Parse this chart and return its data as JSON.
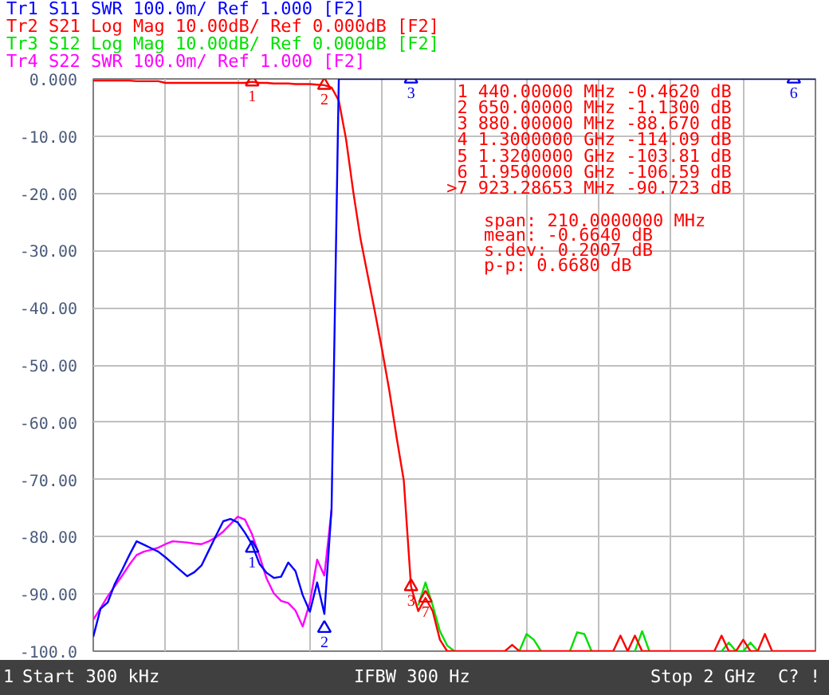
{
  "chart_data": {
    "type": "line",
    "categories": [
      null,
      null,
      null,
      null,
      null,
      null,
      null,
      null,
      null,
      null,
      null,
      null,
      null,
      null,
      null,
      null,
      null,
      null,
      null,
      null,
      null,
      null,
      null,
      null,
      null,
      null,
      null,
      null,
      null,
      null,
      null,
      null,
      null,
      null,
      null,
      null,
      null,
      null,
      null,
      null,
      null,
      null,
      null,
      null,
      null,
      null,
      null,
      null,
      null,
      null,
      null,
      null,
      null,
      null,
      null,
      null,
      null,
      null,
      null,
      null,
      null,
      null,
      null,
      null,
      null,
      null,
      null,
      null,
      null,
      null,
      null,
      null,
      null,
      null,
      null,
      null,
      null,
      null,
      null,
      null,
      null,
      null,
      null,
      null,
      null,
      null,
      null,
      null,
      null,
      null,
      null,
      null,
      null,
      null,
      null,
      null,
      null,
      null,
      null,
      null,
      null
    ],
    "ylim": [
      -100,
      0
    ],
    "yticks": [
      {
        "value": 0,
        "label": "0.000"
      },
      {
        "value": -10,
        "label": "-10.00"
      },
      {
        "value": -20,
        "label": "-20.00"
      },
      {
        "value": -30,
        "label": "-30.00"
      },
      {
        "value": -40,
        "label": "-40.00"
      },
      {
        "value": -50,
        "label": "-50.00"
      },
      {
        "value": -60,
        "label": "-60.00"
      },
      {
        "value": -70,
        "label": "-70.00"
      },
      {
        "value": -80,
        "label": "-80.00"
      },
      {
        "value": -90,
        "label": "-90.00"
      },
      {
        "value": -100,
        "label": "-100.0"
      }
    ],
    "tick_labels": "y",
    "grid": true,
    "line_style": "solid",
    "series": [
      {
        "name": "Tr1 S11 SWR 100.0m/ Ref 1.000 [F2]",
        "color": "#0000ff",
        "values": [
          -97.5,
          -92.6,
          -91.5,
          -88.2,
          -85.8,
          -83.2,
          -80.8,
          -81.4,
          -82,
          -82.6,
          -83.6,
          -84.7,
          -85.8,
          -86.9,
          -86.2,
          -85,
          -82.4,
          -79.8,
          -77.3,
          -76.9,
          -77.5,
          -79.3,
          -81.4,
          -84.7,
          -86.3,
          -87.2,
          -87,
          -84.5,
          -86,
          -90.2,
          -93.1,
          -88,
          -93.5,
          -75,
          0,
          0,
          0,
          0,
          0,
          0,
          0,
          0,
          0,
          0,
          0,
          0,
          0,
          0,
          0,
          0,
          0,
          0,
          0,
          0,
          0,
          0,
          0,
          0,
          0,
          0,
          0,
          0,
          0,
          0,
          0,
          0,
          0,
          0,
          0,
          0,
          0,
          0,
          0,
          0,
          0,
          0,
          0,
          0,
          0,
          0,
          0,
          0,
          0,
          0,
          0,
          0,
          0,
          0,
          0,
          0,
          0,
          0,
          0,
          0,
          0,
          0,
          0,
          0,
          0,
          0,
          0
        ]
      },
      {
        "name": "Tr2 S21 Log Mag 10.00dB/ Ref 0.000dB [F2]",
        "color": "#ff0000",
        "values": [
          -0.3,
          -0.3,
          -0.3,
          -0.3,
          -0.3,
          -0.3,
          -0.4,
          -0.4,
          -0.4,
          -0.4,
          -0.7,
          -0.7,
          -0.7,
          -0.7,
          -0.7,
          -0.7,
          -0.7,
          -0.7,
          -0.7,
          -0.7,
          -0.7,
          -0.7,
          -0.5,
          -0.7,
          -0.7,
          -0.8,
          -0.8,
          -0.8,
          -0.9,
          -0.9,
          -0.9,
          -1,
          -1.1,
          -1.5,
          -3.8,
          -10.5,
          -19.7,
          -27.9,
          -34.3,
          -40.7,
          -47.4,
          -54.5,
          -62.6,
          -70.2,
          -88.7,
          -93,
          -90.7,
          -93,
          -98,
          -100,
          -100,
          -100,
          -100,
          -100,
          -100,
          -100,
          -100,
          -100,
          -98.9,
          -100,
          -100,
          -100,
          -100,
          -100,
          -100,
          -100,
          -100,
          -100,
          -100,
          -100,
          -100,
          -100,
          -100,
          -97.3,
          -100,
          -97.3,
          -100,
          -100,
          -100,
          -100,
          -100,
          -100,
          -100,
          -100,
          -100,
          -100,
          -100,
          -97.3,
          -100,
          -100,
          -98,
          -100,
          -100,
          -97,
          -100,
          -100,
          -100,
          -100,
          -100,
          -100,
          -100
        ]
      },
      {
        "name": "Tr3 S12 Log Mag 10.00dB/ Ref 0.000dB [F2]",
        "color": "#00e000",
        "values": [
          null,
          null,
          null,
          null,
          null,
          null,
          null,
          null,
          null,
          null,
          null,
          null,
          null,
          null,
          null,
          null,
          null,
          null,
          null,
          null,
          null,
          null,
          null,
          null,
          null,
          null,
          null,
          null,
          null,
          null,
          null,
          null,
          null,
          null,
          null,
          null,
          null,
          null,
          null,
          null,
          null,
          null,
          null,
          null,
          null,
          -92,
          -88,
          -92,
          -96.5,
          -99,
          -100,
          null,
          null,
          null,
          null,
          null,
          null,
          null,
          null,
          -100,
          -97,
          -98,
          -100,
          null,
          null,
          null,
          -100,
          -96.7,
          -97,
          -100,
          null,
          null,
          null,
          null,
          null,
          -100,
          -96.5,
          -100,
          null,
          null,
          null,
          null,
          null,
          null,
          null,
          null,
          null,
          -100,
          -98.5,
          -100,
          -100,
          -98.5,
          -100,
          null,
          null,
          null,
          null,
          null,
          null,
          null,
          null
        ]
      },
      {
        "name": "Tr4 S22 SWR 100.0m/ Ref 1.000 [F2]",
        "color": "#ff00ff",
        "values": [
          -94.5,
          -92.5,
          -90.4,
          -88.6,
          -86.8,
          -84.9,
          -83.2,
          -82.6,
          -82.3,
          -81.9,
          -81.3,
          -80.8,
          -80.9,
          -81,
          -81.2,
          -81.3,
          -80.8,
          -80.1,
          -79.1,
          -77.8,
          -76.5,
          -77,
          -79.6,
          -83.3,
          -87.3,
          -89.9,
          -91.2,
          -91.6,
          -92.9,
          -95.7,
          -91.5,
          -84,
          -86.8,
          -75.3,
          null,
          null,
          null,
          null,
          null,
          null,
          null,
          null,
          null,
          null,
          null,
          null,
          null,
          null,
          null,
          null,
          null,
          null,
          null,
          null,
          null,
          null,
          null,
          null,
          null,
          null,
          null,
          null,
          null,
          null,
          null,
          null,
          null,
          null,
          null,
          null,
          null,
          null,
          null,
          null,
          null,
          null,
          null,
          null,
          null,
          null,
          null,
          null,
          null,
          null,
          null,
          null,
          null,
          null,
          null,
          null,
          null,
          null,
          null,
          null,
          null,
          null,
          null,
          null,
          null,
          null,
          null
        ]
      },
      {
        "type": "scatter",
        "marker": "triangle",
        "name": "1",
        "color": "#ee0000",
        "values": [
          null,
          null,
          null,
          null,
          null,
          null,
          null,
          null,
          null,
          null,
          null,
          null,
          null,
          null,
          null,
          null,
          null,
          null,
          null,
          null,
          null,
          null,
          -0.5,
          null,
          null,
          null,
          null,
          null,
          null,
          null,
          null,
          null,
          null,
          null,
          null,
          null,
          null,
          null,
          null,
          null,
          null,
          null,
          null,
          null,
          null,
          null,
          null,
          null,
          null,
          null,
          null,
          null,
          null,
          null,
          null,
          null,
          null,
          null,
          null,
          null,
          null,
          null,
          null,
          null,
          null,
          null,
          null,
          null,
          null,
          null,
          null,
          null,
          null,
          null,
          null,
          null,
          null,
          null,
          null,
          null,
          null,
          null,
          null,
          null,
          null,
          null,
          null,
          null,
          null,
          null,
          null,
          null,
          null,
          null,
          null,
          null,
          null,
          null,
          null,
          null,
          null
        ]
      },
      {
        "type": "scatter",
        "marker": "triangle",
        "name": "2",
        "color": "#ee0000",
        "values": [
          null,
          null,
          null,
          null,
          null,
          null,
          null,
          null,
          null,
          null,
          null,
          null,
          null,
          null,
          null,
          null,
          null,
          null,
          null,
          null,
          null,
          null,
          null,
          null,
          null,
          null,
          null,
          null,
          null,
          null,
          null,
          null,
          -1.1,
          null,
          null,
          null,
          null,
          null,
          null,
          null,
          null,
          null,
          null,
          null,
          null,
          null,
          null,
          null,
          null,
          null,
          null,
          null,
          null,
          null,
          null,
          null,
          null,
          null,
          null,
          null,
          null,
          null,
          null,
          null,
          null,
          null,
          null,
          null,
          null,
          null,
          null,
          null,
          null,
          null,
          null,
          null,
          null,
          null,
          null,
          null,
          null,
          null,
          null,
          null,
          null,
          null,
          null,
          null,
          null,
          null,
          null,
          null,
          null,
          null,
          null,
          null,
          null,
          null,
          null,
          null,
          null
        ]
      },
      {
        "type": "scatter",
        "marker": "triangle",
        "name": "3",
        "color": "#ee0000",
        "values": [
          null,
          null,
          null,
          null,
          null,
          null,
          null,
          null,
          null,
          null,
          null,
          null,
          null,
          null,
          null,
          null,
          null,
          null,
          null,
          null,
          null,
          null,
          null,
          null,
          null,
          null,
          null,
          null,
          null,
          null,
          null,
          null,
          null,
          null,
          null,
          null,
          null,
          null,
          null,
          null,
          null,
          null,
          null,
          null,
          -88.7,
          null,
          null,
          null,
          null,
          null,
          null,
          null,
          null,
          null,
          null,
          null,
          null,
          null,
          null,
          null,
          null,
          null,
          null,
          null,
          null,
          null,
          null,
          null,
          null,
          null,
          null,
          null,
          null,
          null,
          null,
          null,
          null,
          null,
          null,
          null,
          null,
          null,
          null,
          null,
          null,
          null,
          null,
          null,
          null,
          null,
          null,
          null,
          null,
          null,
          null,
          null,
          null,
          null,
          null,
          null,
          null
        ]
      },
      {
        "type": "scatter",
        "marker": "triangle",
        "name": "7",
        "color": "#ee0000",
        "values": [
          null,
          null,
          null,
          null,
          null,
          null,
          null,
          null,
          null,
          null,
          null,
          null,
          null,
          null,
          null,
          null,
          null,
          null,
          null,
          null,
          null,
          null,
          null,
          null,
          null,
          null,
          null,
          null,
          null,
          null,
          null,
          null,
          null,
          null,
          null,
          null,
          null,
          null,
          null,
          null,
          null,
          null,
          null,
          null,
          null,
          null,
          -90.7,
          null,
          null,
          null,
          null,
          null,
          null,
          null,
          null,
          null,
          null,
          null,
          null,
          null,
          null,
          null,
          null,
          null,
          null,
          null,
          null,
          null,
          null,
          null,
          null,
          null,
          null,
          null,
          null,
          null,
          null,
          null,
          null,
          null,
          null,
          null,
          null,
          null,
          null,
          null,
          null,
          null,
          null,
          null,
          null,
          null,
          null,
          null,
          null,
          null,
          null,
          null,
          null,
          null,
          null
        ]
      },
      {
        "type": "scatter",
        "marker": "triangle",
        "name": "1",
        "color": "#0000ee",
        "values": [
          null,
          null,
          null,
          null,
          null,
          null,
          null,
          null,
          null,
          null,
          null,
          null,
          null,
          null,
          null,
          null,
          null,
          null,
          null,
          null,
          null,
          null,
          -82,
          null,
          null,
          null,
          null,
          null,
          null,
          null,
          null,
          null,
          null,
          null,
          null,
          null,
          null,
          null,
          null,
          null,
          null,
          null,
          null,
          null,
          null,
          null,
          null,
          null,
          null,
          null,
          null,
          null,
          null,
          null,
          null,
          null,
          null,
          null,
          null,
          null,
          null,
          null,
          null,
          null,
          null,
          null,
          null,
          null,
          null,
          null,
          null,
          null,
          null,
          null,
          null,
          null,
          null,
          null,
          null,
          null,
          null,
          null,
          null,
          null,
          null,
          null,
          null,
          null,
          null,
          null,
          null,
          null,
          null,
          null,
          null,
          null,
          null,
          null,
          null,
          null,
          null
        ]
      },
      {
        "type": "scatter",
        "marker": "triangle",
        "name": "2",
        "color": "#0000ee",
        "values": [
          null,
          null,
          null,
          null,
          null,
          null,
          null,
          null,
          null,
          null,
          null,
          null,
          null,
          null,
          null,
          null,
          null,
          null,
          null,
          null,
          null,
          null,
          null,
          null,
          null,
          null,
          null,
          null,
          null,
          null,
          null,
          null,
          -96,
          null,
          null,
          null,
          null,
          null,
          null,
          null,
          null,
          null,
          null,
          null,
          null,
          null,
          null,
          null,
          null,
          null,
          null,
          null,
          null,
          null,
          null,
          null,
          null,
          null,
          null,
          null,
          null,
          null,
          null,
          null,
          null,
          null,
          null,
          null,
          null,
          null,
          null,
          null,
          null,
          null,
          null,
          null,
          null,
          null,
          null,
          null,
          null,
          null,
          null,
          null,
          null,
          null,
          null,
          null,
          null,
          null,
          null,
          null,
          null,
          null,
          null,
          null,
          null,
          null,
          null,
          null,
          null
        ]
      },
      {
        "type": "scatter",
        "marker": "triangle",
        "name": "3",
        "color": "#0000ee",
        "values": [
          null,
          null,
          null,
          null,
          null,
          null,
          null,
          null,
          null,
          null,
          null,
          null,
          null,
          null,
          null,
          null,
          null,
          null,
          null,
          null,
          null,
          null,
          null,
          null,
          null,
          null,
          null,
          null,
          null,
          null,
          null,
          null,
          null,
          null,
          null,
          null,
          null,
          null,
          null,
          null,
          null,
          null,
          null,
          null,
          0,
          null,
          null,
          null,
          null,
          null,
          null,
          null,
          null,
          null,
          null,
          null,
          null,
          null,
          null,
          null,
          null,
          null,
          null,
          null,
          null,
          null,
          null,
          null,
          null,
          null,
          null,
          null,
          null,
          null,
          null,
          null,
          null,
          null,
          null,
          null,
          null,
          null,
          null,
          null,
          null,
          null,
          null,
          null,
          null,
          null,
          null,
          null,
          null,
          null,
          null,
          null,
          null,
          null,
          null,
          null,
          null
        ]
      },
      {
        "type": "scatter",
        "marker": "triangle",
        "name": "6",
        "color": "#0000ee",
        "values": [
          null,
          null,
          null,
          null,
          null,
          null,
          null,
          null,
          null,
          null,
          null,
          null,
          null,
          null,
          null,
          null,
          null,
          null,
          null,
          null,
          null,
          null,
          null,
          null,
          null,
          null,
          null,
          null,
          null,
          null,
          null,
          null,
          null,
          null,
          null,
          null,
          null,
          null,
          null,
          null,
          null,
          null,
          null,
          null,
          null,
          null,
          null,
          null,
          null,
          null,
          null,
          null,
          null,
          null,
          null,
          null,
          null,
          null,
          null,
          null,
          null,
          null,
          null,
          null,
          null,
          null,
          null,
          null,
          null,
          null,
          null,
          null,
          null,
          null,
          null,
          null,
          null,
          null,
          null,
          null,
          null,
          null,
          null,
          null,
          null,
          null,
          null,
          null,
          null,
          null,
          null,
          null,
          null,
          null,
          null,
          null,
          null,
          0,
          null,
          null,
          null
        ]
      }
    ],
    "annotations": [
      "1  440.00000 MHz -0.4620 dB",
      "2  650.00000 MHz -1.1300 dB",
      "3  880.00000 MHz -88.670 dB",
      "4  1.3000000 GHz -114.09 dB",
      "5  1.3200000 GHz -103.81 dB",
      "6  1.9500000 GHz -106.59 dB",
      ">7  923.28653 MHz -90.723 dB",
      "span:  210.0000000 MHz",
      "mean: -0.6640 dB",
      "s.dev:  0.2007 dB",
      "p-p:  0.6680 dB",
      "1",
      "Start 300 kHz",
      "IFBW 300 Hz",
      "Stop 2 GHz",
      "C?",
      "!"
    ]
  }
}
